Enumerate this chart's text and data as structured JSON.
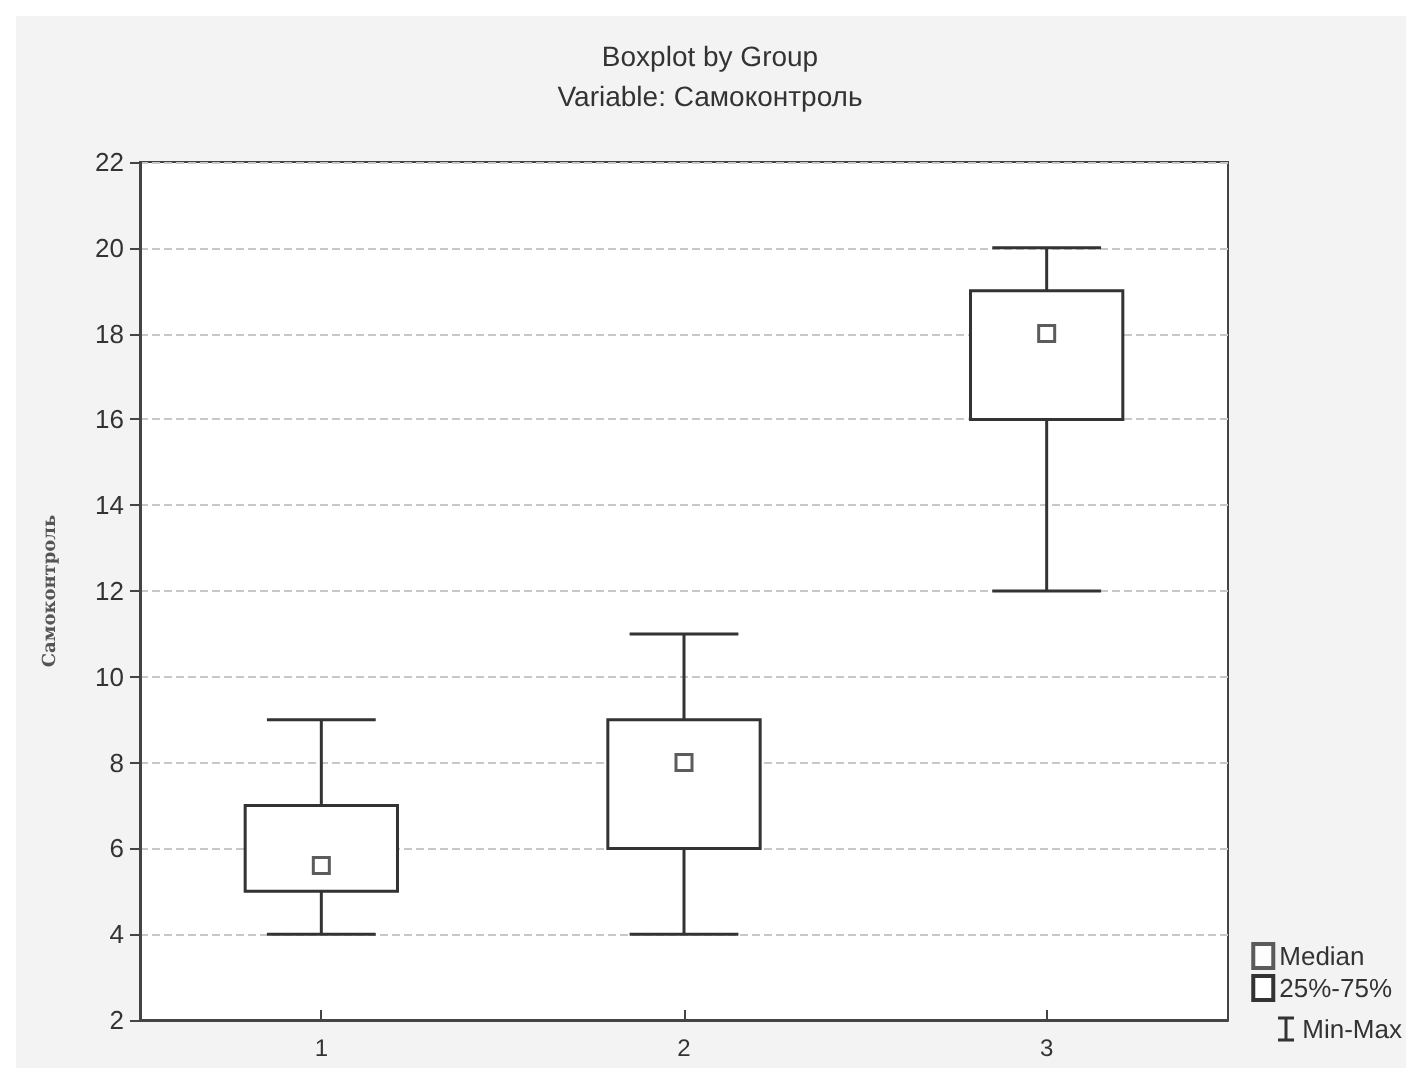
{
  "chart_data": {
    "type": "box",
    "title": "Boxplot by Group",
    "subtitle": "Variable: Самоконтроль",
    "ylabel": "Самоконтроль",
    "categories": [
      "1",
      "2",
      "3"
    ],
    "series": [
      {
        "name": "25%-75%",
        "color": "#333333",
        "boxes": [
          {
            "low": 4,
            "q1": 5,
            "median": 5.6,
            "q3": 7,
            "high": 9
          },
          {
            "low": 4,
            "q1": 6,
            "median": 8,
            "q3": 9,
            "high": 11
          },
          {
            "low": 12,
            "q1": 16,
            "median": 18,
            "q3": 19,
            "high": 20
          }
        ]
      }
    ],
    "annotations": [
      "Median",
      "Min-Max"
    ],
    "ylim": [
      2,
      22
    ],
    "yticks": [
      2,
      4,
      6,
      8,
      10,
      12,
      14,
      16,
      18,
      20,
      22
    ],
    "grid": "y",
    "legend": "bottom right",
    "marker": "square"
  }
}
